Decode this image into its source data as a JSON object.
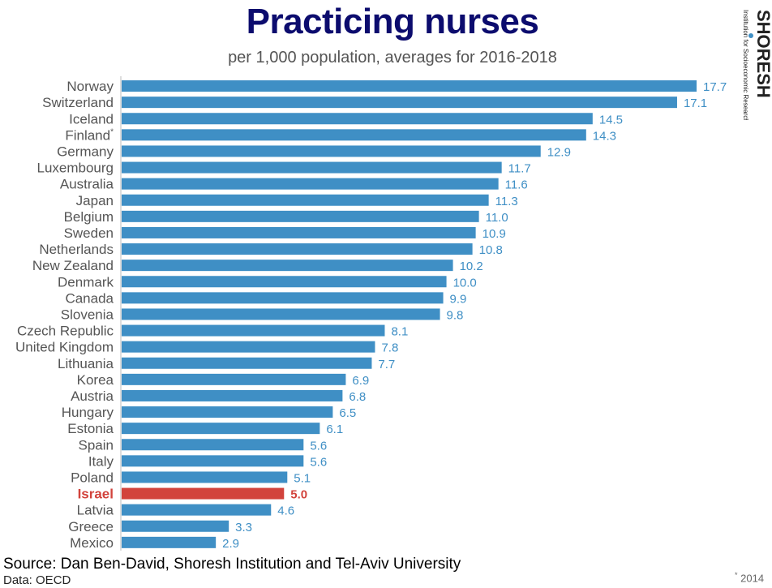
{
  "header": {
    "title": "Practicing nurses",
    "subtitle": "per 1,000 population, averages for 2016-2018"
  },
  "logo": {
    "name": "SHORESH",
    "tagline": "Institution for Socioeconomic Research"
  },
  "footer": {
    "source": "Source: Dan Ben-David, Shoresh Institution and Tel-Aviv University",
    "data": "Data: OECD",
    "footnote_mark": "*",
    "footnote_text": "2014"
  },
  "colors": {
    "bar": "#3f8fc5",
    "highlight": "#d2433c",
    "label": "#555555",
    "value": "#3f8fc5",
    "title": "#0c0c6e"
  },
  "chart_data": {
    "type": "bar",
    "orientation": "horizontal",
    "title": "Practicing nurses",
    "subtitle": "per 1,000 population, averages for 2016-2018",
    "categories": [
      "Norway",
      "Switzerland",
      "Iceland",
      "Finland*",
      "Germany",
      "Luxembourg",
      "Australia",
      "Japan",
      "Belgium",
      "Sweden",
      "Netherlands",
      "New Zealand",
      "Denmark",
      "Canada",
      "Slovenia",
      "Czech Republic",
      "United Kingdom",
      "Lithuania",
      "Korea",
      "Austria",
      "Hungary",
      "Estonia",
      "Spain",
      "Italy",
      "Poland",
      "Israel",
      "Latvia",
      "Greece",
      "Mexico"
    ],
    "value_labels": [
      "17.7",
      "17.1",
      "14.5",
      "14.3",
      "12.9",
      "11.7",
      "11.6",
      "11.3",
      "11.0",
      "10.9",
      "10.8",
      "10.2",
      "10.0",
      "9.9",
      "9.8",
      "8.1",
      "7.8",
      "7.7",
      "6.9",
      "6.8",
      "6.5",
      "6.1",
      "5.6",
      "5.6",
      "5.1",
      "5.0",
      "4.6",
      "3.3",
      "2.9"
    ],
    "values": [
      17.7,
      17.1,
      14.5,
      14.3,
      12.9,
      11.7,
      11.6,
      11.3,
      11.0,
      10.9,
      10.8,
      10.2,
      10.0,
      9.9,
      9.8,
      8.1,
      7.8,
      7.7,
      6.9,
      6.8,
      6.5,
      6.1,
      5.6,
      5.6,
      5.1,
      5.0,
      4.6,
      3.3,
      2.9
    ],
    "highlight": "Israel",
    "xlim": [
      0,
      17.7
    ],
    "grid": false,
    "legend": "none"
  }
}
